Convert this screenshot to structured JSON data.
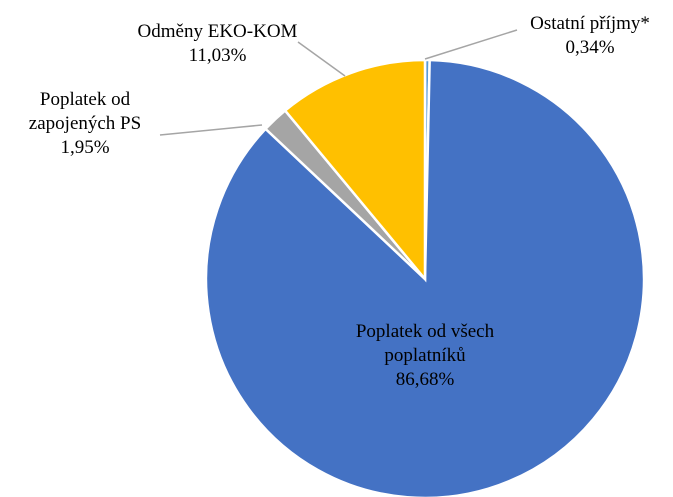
{
  "chart_data": {
    "type": "pie",
    "categories": [
      "Ostatní příjmy*",
      "Poplatek od všech poplatníků",
      "Poplatek od zapojených PS",
      "Odměny EKO-KOM"
    ],
    "values": [
      0.34,
      86.68,
      1.95,
      11.03
    ],
    "value_labels": [
      "0,34%",
      "86,68%",
      "1,95%",
      "11,03%"
    ],
    "colors": [
      "#5b9bd5",
      "#4472c4",
      "#a5a5a5",
      "#ffc000"
    ]
  }
}
